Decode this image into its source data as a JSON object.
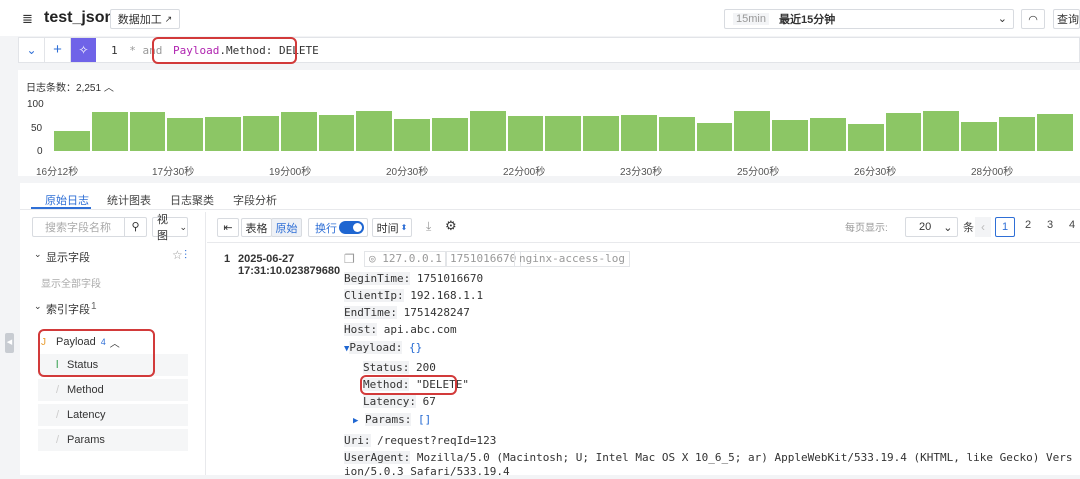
{
  "header": {
    "title": "test_json",
    "process_button": "数据加工",
    "time_short": "15min",
    "time_range": "最近15分钟",
    "query_button": "查询"
  },
  "query": {
    "line_no": "1",
    "prefix": "* and",
    "field": "Payload",
    "rest": ".Method: DELETE"
  },
  "histogram": {
    "count_label": "日志条数：",
    "count": "2,251"
  },
  "chart_data": {
    "type": "bar",
    "ylim": [
      0,
      100
    ],
    "y_ticks": [
      "100",
      "50",
      "0"
    ],
    "x_ticks": [
      "16分12秒",
      "17分30秒",
      "19分00秒",
      "20分30秒",
      "22分00秒",
      "23分30秒",
      "25分00秒",
      "26分30秒",
      "28分00秒"
    ],
    "values": [
      43,
      83,
      83,
      70,
      73,
      74,
      83,
      77,
      85,
      68,
      70,
      86,
      74,
      75,
      75,
      76,
      72,
      60,
      86,
      67,
      71,
      58,
      81,
      86,
      61,
      72,
      78
    ],
    "color": "#8cc665",
    "grid": false
  },
  "tabs": [
    "原始日志",
    "统计图表",
    "日志聚类",
    "字段分析"
  ],
  "sidebar": {
    "search_placeholder": "搜索字段名称",
    "view_select": "视图",
    "shown_fields": "显示字段",
    "show_all": "显示全部字段",
    "index_fields": "索引字段",
    "index_count": "1",
    "payload": {
      "name": "Payload",
      "count": "4",
      "children": [
        "Status",
        "Method",
        "Latency",
        "Params"
      ]
    }
  },
  "toolbar": {
    "table": "表格",
    "raw": "原始",
    "wrap": "换行",
    "wrap_on": true,
    "time": "时间",
    "per_page_label": "每页显示:",
    "per_page": "20",
    "unit": "条",
    "pages": [
      "1",
      "2",
      "3",
      "4"
    ],
    "current_page": "1"
  },
  "log": {
    "index": "1",
    "date": "2025-06-27",
    "time": "17:31:10.023879680",
    "tags": [
      "127.0.0.1",
      "1751016670",
      "nginx-access-log"
    ],
    "fields": [
      {
        "k": "BeginTime:",
        "v": "1751016670"
      },
      {
        "k": "ClientIp:",
        "v": "192.168.1.1"
      },
      {
        "k": "EndTime:",
        "v": "1751428247"
      },
      {
        "k": "Host:",
        "v": "api.abc.com"
      }
    ],
    "payload_k": "Payload:",
    "payload_v": "{}",
    "payload_fields": [
      {
        "k": "Status:",
        "v": "200"
      },
      {
        "k": "Method:",
        "v": "\"DELETE\""
      },
      {
        "k": "Latency:",
        "v": "67"
      }
    ],
    "params_k": "Params:",
    "params_v": "[]",
    "uri_k": "Uri:",
    "uri_v": "/request?reqId=123",
    "ua_k": "UserAgent:",
    "ua_v": "Mozilla/5.0 (Macintosh; U; Intel Mac OS X 10_6_5; ar) AppleWebKit/533.19.4 (KHTML, like Gecko) Version/5.0.3 Safari/533.19.4"
  }
}
